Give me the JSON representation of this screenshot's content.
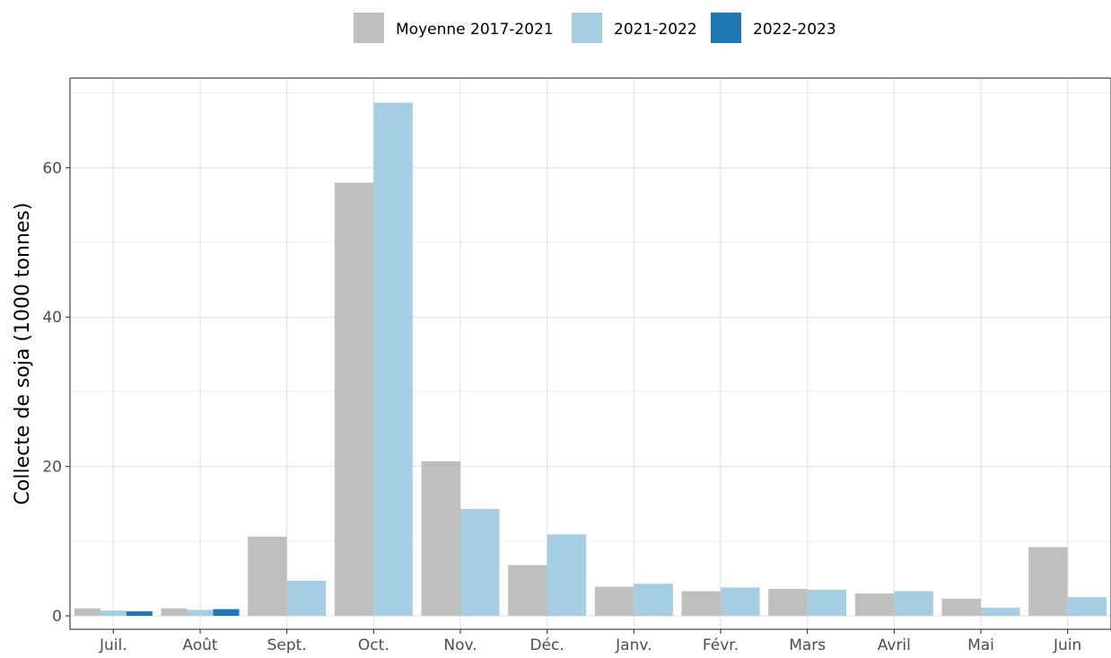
{
  "chart_data": {
    "type": "bar",
    "categories": [
      "Juil.",
      "Août",
      "Sept.",
      "Oct.",
      "Nov.",
      "Déc.",
      "Janv.",
      "Févr.",
      "Mars",
      "Avril",
      "Mai",
      "Juin"
    ],
    "series": [
      {
        "name": "Moyenne 2017-2021",
        "color": "#bfbfbf",
        "values": [
          1.0,
          1.0,
          10.6,
          58.0,
          20.7,
          6.8,
          3.9,
          3.3,
          3.6,
          3.0,
          2.3,
          9.2
        ]
      },
      {
        "name": "2021-2022",
        "color": "#a6cee3",
        "values": [
          0.7,
          0.8,
          4.7,
          68.7,
          14.3,
          10.9,
          4.3,
          3.8,
          3.5,
          3.3,
          1.1,
          2.5
        ]
      },
      {
        "name": "2022-2023",
        "color": "#1f78b4",
        "values": [
          0.6,
          0.9,
          null,
          null,
          null,
          null,
          null,
          null,
          null,
          null,
          null,
          null
        ]
      }
    ],
    "title": "",
    "xlabel": "",
    "ylabel": "Collecte de soja (1000 tonnes)",
    "ylim": [
      -1.8,
      72
    ],
    "yticks": [
      0,
      20,
      40,
      60
    ],
    "ytick_labels": [
      "0",
      "20",
      "40",
      "60"
    ],
    "grid": true,
    "legend_position": "top"
  }
}
